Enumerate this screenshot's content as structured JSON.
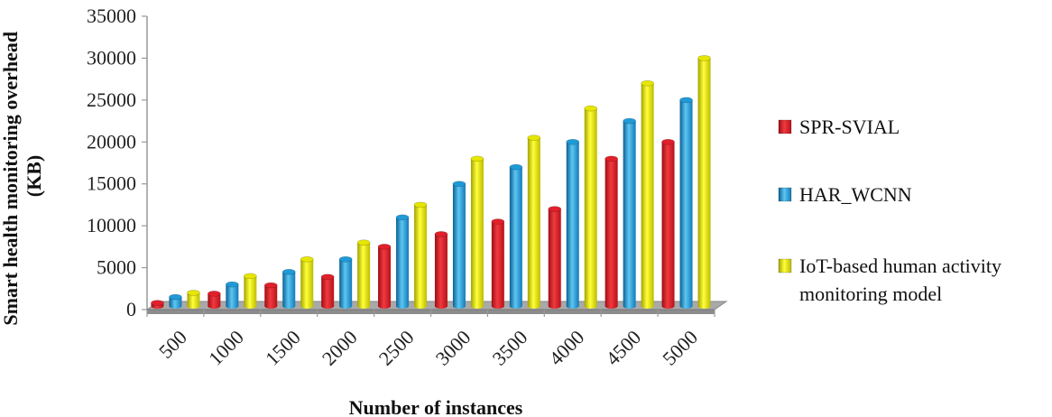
{
  "chart_data": {
    "type": "bar",
    "title": "",
    "xlabel": "Number of instances",
    "ylabel": [
      "Smart health monitoring overhead",
      "(KB)"
    ],
    "categories": [
      "500",
      "1000",
      "1500",
      "2000",
      "2500",
      "3000",
      "3500",
      "4000",
      "4500",
      "5000"
    ],
    "ylim": [
      0,
      35000
    ],
    "yticks": [
      "0",
      "5000",
      "10000",
      "15000",
      "20000",
      "25000",
      "30000",
      "35000"
    ],
    "grid": false,
    "legend_position": "right",
    "series": [
      {
        "name": "SPR-SVIAL",
        "color": "#e0202a",
        "values": [
          800,
          1900,
          2900,
          3900,
          7500,
          9000,
          10500,
          12000,
          18000,
          20000
        ]
      },
      {
        "name": "HAR_WCNN",
        "color": "#1f9ad6",
        "values": [
          1500,
          3000,
          4500,
          6000,
          11000,
          15000,
          17000,
          20000,
          22500,
          25000
        ]
      },
      {
        "name": "IoT-based human activity monitoring model",
        "legend_lines": [
          "IoT-based human activity",
          "monitoring model"
        ],
        "color": "#e6e600",
        "values": [
          2000,
          4000,
          6000,
          8000,
          12500,
          18000,
          20500,
          24000,
          27000,
          30000
        ]
      }
    ]
  }
}
